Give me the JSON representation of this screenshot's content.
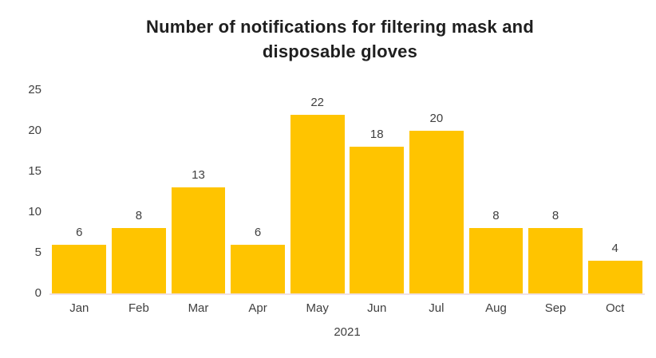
{
  "chart_data": {
    "type": "bar",
    "title": "Number of notifications for filtering mask and disposable gloves",
    "categories": [
      "Jan",
      "Feb",
      "Mar",
      "Apr",
      "May",
      "Jun",
      "Jul",
      "Aug",
      "Sep",
      "Oct"
    ],
    "values": [
      6,
      8,
      13,
      6,
      22,
      18,
      20,
      8,
      8,
      4
    ],
    "xlabel": "2021",
    "ylabel": "",
    "ylim": [
      0,
      25
    ],
    "yticks": [
      0,
      5,
      10,
      15,
      20,
      25
    ],
    "grid": "off",
    "legend": "none",
    "data_labels": "above-bars",
    "bar_color": "#FFC400",
    "axis_line_color": "#f0e1e6",
    "label_color": "#404040",
    "title_color": "#1f1f1f"
  }
}
